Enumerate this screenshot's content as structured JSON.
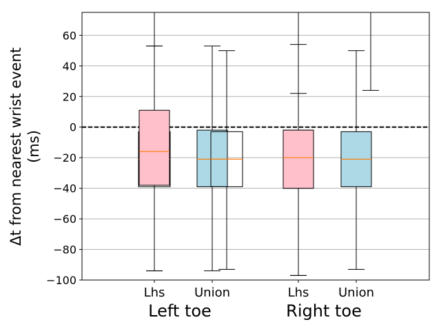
{
  "chart_data": {
    "type": "box",
    "ylabel_lines": [
      "Δt from nearest wrist event",
      "(ms)"
    ],
    "ylim": [
      -100,
      75
    ],
    "yticks": [
      -100,
      -80,
      -60,
      -40,
      -20,
      0,
      20,
      40,
      60
    ],
    "grid": "horizontal",
    "reference_line": 0,
    "groups": [
      {
        "label": "Left toe",
        "ticks": [
          "Lhs",
          "Union"
        ]
      },
      {
        "label": "Right toe",
        "ticks": [
          "Lhs",
          "Union"
        ]
      }
    ],
    "boxes": [
      {
        "id": "left-lhs-outline",
        "fill": "none",
        "whislo": -94,
        "q1": -39,
        "med": -21,
        "q3": -3,
        "whishi": 53
      },
      {
        "id": "left-lhs",
        "fill": "#ffc0cb",
        "whislo": -94,
        "q1": -38,
        "med": -16,
        "q3": 11,
        "whishi": 53
      },
      {
        "id": "left-union",
        "fill": "#add8e6",
        "whislo": -94,
        "q1": -39,
        "med": -21,
        "q3": -2,
        "whishi": 53
      },
      {
        "id": "left-union-outline",
        "fill": "none",
        "whislo": -93,
        "q1": -39,
        "med": -21,
        "q3": -3,
        "whishi": 50
      },
      {
        "id": "right-lhs-outline",
        "fill": "none",
        "whislo": -97,
        "q1": -40,
        "med": -20,
        "q3": -2,
        "whishi": 22
      },
      {
        "id": "right-lhs",
        "fill": "#ffc0cb",
        "whislo": -97,
        "q1": -40,
        "med": -20,
        "q3": -2,
        "whishi": 54
      },
      {
        "id": "right-union",
        "fill": "#add8e6",
        "whislo": -93,
        "q1": -39,
        "med": -21,
        "q3": -3,
        "whishi": 50
      },
      {
        "id": "right-union-outline",
        "fill": "none",
        "whislo": null,
        "q1": null,
        "med": null,
        "q3": null,
        "whishi": 24
      }
    ],
    "colors": {
      "median": "#ff7f0e",
      "lhs_fill": "#ffc0cb",
      "union_fill": "#add8e6",
      "grid": "#b0b0b0"
    }
  }
}
